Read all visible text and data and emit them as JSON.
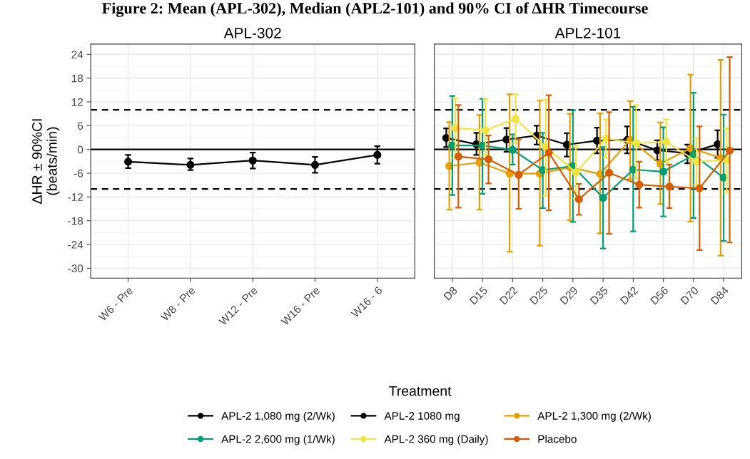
{
  "chart_data": [
    {
      "type": "line",
      "title": "APL-302",
      "ylabel": "ΔHR ± 90%CI\n(beats/min)",
      "annotations": [
        "Figure 2: Mean (APL-302), Median (APL2-101) and 90% CI of ΔHR Timecourse"
      ],
      "categories": [
        "W6 - Pre",
        "W8 - Pre",
        "W12 - Pre",
        "W16 - Pre",
        "W16 - 6"
      ],
      "series": [
        {
          "name": "APL-2 1,080 mg (2/Wk)",
          "color": "#000000",
          "values": [
            -3.1,
            -3.9,
            -2.8,
            -3.9,
            -1.4
          ],
          "errors": [
            [
              -4.7,
              -1.4
            ],
            [
              -5.2,
              -2.3
            ],
            [
              -4.8,
              -0.8
            ],
            [
              -5.9,
              -1.9
            ],
            [
              -3.6,
              0.8
            ]
          ]
        }
      ],
      "ylim": [
        -32.5,
        26.6
      ],
      "yticks": [
        -30,
        -24,
        -18,
        -12,
        -6,
        0,
        6,
        12,
        18,
        24
      ],
      "ref_lines": [
        {
          "axis": "y",
          "value": 0,
          "label": null,
          "color": "#000000",
          "line_style": "solid"
        },
        {
          "axis": "y",
          "value": 10,
          "label": null,
          "color": "#000000",
          "line_style": "dashed"
        },
        {
          "axis": "y",
          "value": -10,
          "label": null,
          "color": "#000000",
          "line_style": "dashed"
        }
      ],
      "grid": true,
      "legend": "bottom",
      "marker": "circle",
      "line_style": "solid"
    },
    {
      "type": "line",
      "title": "APL2-101",
      "legend_title": "Treatment",
      "categories": [
        "D8",
        "D15",
        "D22",
        "D25",
        "D29",
        "D35",
        "D42",
        "D56",
        "D70",
        "D84"
      ],
      "series": [
        {
          "name": "APL-2 1080 mg",
          "color": "#000000",
          "values": [
            2.9,
            1.3,
            2.5,
            3.5,
            1.2,
            2.2,
            2.4,
            -0.2,
            -1.0,
            1.3
          ],
          "errors": [
            [
              0.6,
              5.3
            ],
            [
              -1.4,
              4.2
            ],
            [
              -0.6,
              5.4
            ],
            [
              1.2,
              6.0
            ],
            [
              -1.8,
              4.1
            ],
            [
              -1.0,
              5.5
            ],
            [
              -1.0,
              5.8
            ],
            [
              -2.7,
              2.3
            ],
            [
              -3.5,
              1.2
            ],
            [
              -2.1,
              4.8
            ]
          ]
        },
        {
          "name": "APL-2 1,300 mg (2/Wk)",
          "color": "#E69F00",
          "values": [
            -4.2,
            -3.3,
            -6.1,
            -6.1,
            -4.5,
            -6.2,
            2.4,
            -3.6,
            0.3,
            -2.1
          ],
          "errors": [
            [
              -15.2,
              6.9
            ],
            [
              -15.2,
              8.7
            ],
            [
              -25.8,
              13.9
            ],
            [
              -24.3,
              12.4
            ],
            [
              -17.9,
              9.0
            ],
            [
              -21.2,
              9.1
            ],
            [
              -7.5,
              12.2
            ],
            [
              -13.8,
              6.8
            ],
            [
              -18.2,
              18.9
            ],
            [
              -26.8,
              22.6
            ]
          ]
        },
        {
          "name": "APL-2 2,600 mg (1/Wk)",
          "color": "#009E73",
          "values": [
            1.0,
            1.0,
            -0.1,
            -5.2,
            -4.2,
            -12.2,
            -5.1,
            -5.6,
            -1.4,
            -7.1
          ],
          "errors": [
            [
              -11.5,
              13.5
            ],
            [
              -11.2,
              12.8
            ],
            [
              -3.8,
              3.8
            ],
            [
              -14.8,
              4.2
            ],
            [
              -18.3,
              9.9
            ],
            [
              -25.0,
              0.6
            ],
            [
              -20.7,
              10.7
            ],
            [
              -16.9,
              5.6
            ],
            [
              -17.3,
              14.3
            ],
            [
              -23.1,
              8.8
            ]
          ]
        },
        {
          "name": "APL-2 360 mg (Daily)",
          "color": "#F0E442",
          "values": [
            5.4,
            4.8,
            7.7,
            0.6,
            -5.8,
            2.7,
            1.6,
            1.9,
            -3.0,
            -2.7
          ],
          "errors": [
            [
              -2.1,
              12.9
            ],
            [
              -1.5,
              12.7
            ],
            [
              1.5,
              13.9
            ],
            [
              -11.7,
              12.5
            ],
            [
              -12.4,
              0.8
            ],
            [
              -2.1,
              7.6
            ],
            [
              -7.3,
              11.2
            ],
            [
              -3.3,
              7.6
            ],
            [
              -8.9,
              2.8
            ],
            [
              -10.8,
              5.3
            ]
          ]
        },
        {
          "name": "Placebo",
          "color": "#D55E00",
          "values": [
            -1.8,
            -2.5,
            -6.4,
            -0.8,
            -12.6,
            -5.9,
            -8.9,
            -9.4,
            -9.8,
            -0.3
          ],
          "errors": [
            [
              -14.7,
              11.2
            ],
            [
              -8.6,
              3.5
            ],
            [
              -15.0,
              2.5
            ],
            [
              -15.4,
              13.7
            ],
            [
              -16.5,
              -8.7
            ],
            [
              -21.3,
              9.4
            ],
            [
              -14.7,
              -3.1
            ],
            [
              -14.8,
              -3.8
            ],
            [
              -25.4,
              5.8
            ],
            [
              -23.5,
              23.3
            ]
          ]
        }
      ],
      "ylim": [
        -32.5,
        26.6
      ],
      "yticks": [
        -30,
        -24,
        -18,
        -12,
        -6,
        0,
        6,
        12,
        18,
        24
      ],
      "tick_labels": "x",
      "ref_lines": [
        {
          "axis": "y",
          "value": 0,
          "label": null,
          "color": "#000000",
          "line_style": "solid"
        },
        {
          "axis": "y",
          "value": 10,
          "label": null,
          "color": "#000000",
          "line_style": "dashed"
        },
        {
          "axis": "y",
          "value": -10,
          "label": null,
          "color": "#000000",
          "line_style": "dashed"
        }
      ],
      "grid": true,
      "legend": "bottom",
      "marker": "circle",
      "line_style": "solid"
    }
  ]
}
